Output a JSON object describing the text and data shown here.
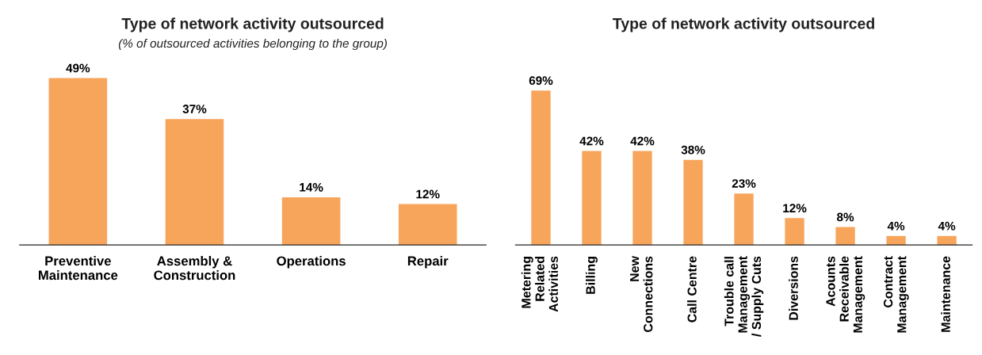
{
  "chart_data": [
    {
      "type": "bar",
      "title": "Type of network activity outsourced",
      "subtitle": "(% of outsourced activities belonging to the group)",
      "categories": [
        "Preventive\nMaintenance",
        "Assembly &\nConstruction",
        "Operations",
        "Repair"
      ],
      "values": [
        49,
        37,
        14,
        12
      ],
      "color": "#f8a55c",
      "value_labels": [
        "49%",
        "37%",
        "14%",
        "12%"
      ],
      "grid": false,
      "legend": false
    },
    {
      "type": "bar",
      "title": "Type of network activity outsourced",
      "categories": [
        "Metering\nRelated\nActivities",
        "Billing",
        "New\nConnections",
        "Call Centre",
        "Trouble call\nManagement\n/ Supply Cuts",
        "Diversions",
        "Acounts\nReceivable\nManagement",
        "Contract\nManagement",
        "Maintenance"
      ],
      "values": [
        69,
        42,
        42,
        38,
        23,
        12,
        8,
        4,
        4
      ],
      "color": "#f8a55c",
      "value_labels": [
        "69%",
        "42%",
        "42%",
        "38%",
        "23%",
        "12%",
        "8%",
        "4%",
        "4%"
      ],
      "grid": false,
      "legend": false
    }
  ]
}
